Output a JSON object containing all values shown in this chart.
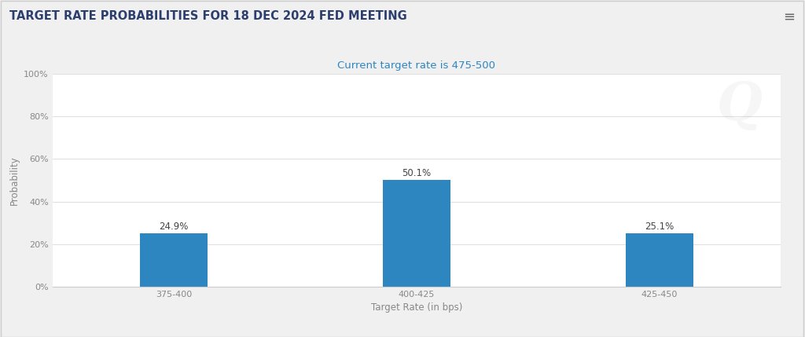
{
  "title": "TARGET RATE PROBABILITIES FOR 18 DEC 2024 FED MEETING",
  "subtitle": "Current target rate is 475-500",
  "categories": [
    "375-400",
    "400-425",
    "425-450"
  ],
  "values": [
    24.9,
    50.1,
    25.1
  ],
  "bar_color": "#2e86c1",
  "xlabel": "Target Rate (in bps)",
  "ylabel": "Probability",
  "ylim": [
    0,
    100
  ],
  "yticks": [
    0,
    20,
    40,
    60,
    80,
    100
  ],
  "ytick_labels": [
    "0%",
    "20%",
    "40%",
    "60%",
    "80%",
    "100%"
  ],
  "background_color": "#f0f0f0",
  "plot_background_color": "#ffffff",
  "title_color": "#2c3e6e",
  "subtitle_color": "#2e86c1",
  "grid_color": "#e0e0e0",
  "bar_width": 0.28,
  "label_fontsize": 8.5,
  "title_fontsize": 10.5,
  "subtitle_fontsize": 9.5,
  "axis_label_fontsize": 8.5,
  "tick_fontsize": 8,
  "watermark_text": "Q",
  "watermark_alpha": 0.1,
  "border_color": "#cccccc"
}
